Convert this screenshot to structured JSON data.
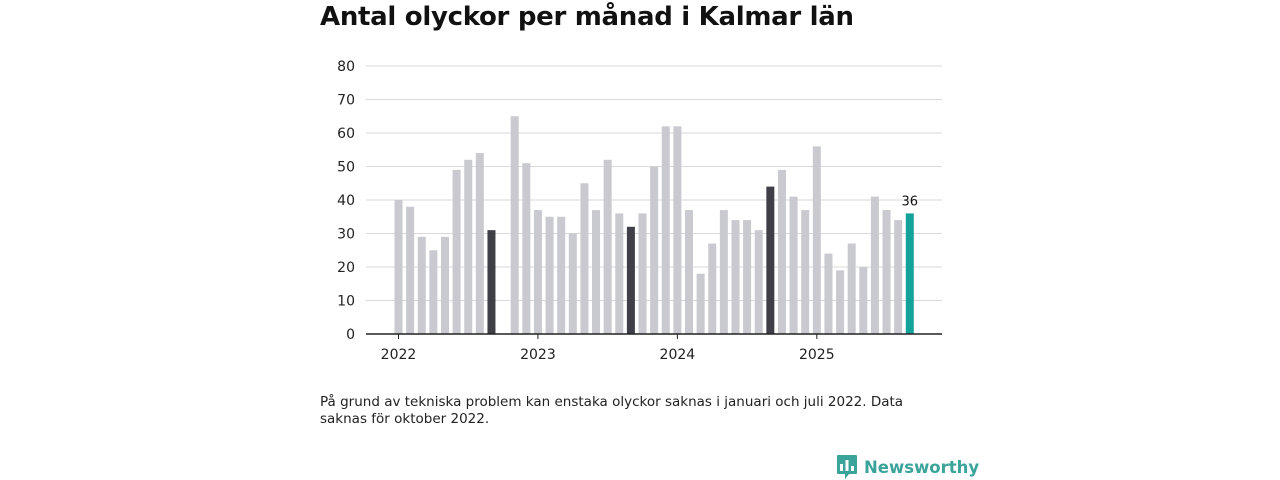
{
  "chart_data": {
    "type": "bar",
    "title": "Antal olyckor per månad i Kalmar län",
    "ylim": [
      0,
      80
    ],
    "yticks": [
      0,
      10,
      20,
      30,
      40,
      50,
      60,
      70,
      80
    ],
    "xticks": [
      "2022",
      "2023",
      "2024",
      "2025"
    ],
    "grid": true,
    "categories": [
      "2022-01",
      "2022-02",
      "2022-03",
      "2022-04",
      "2022-05",
      "2022-06",
      "2022-07",
      "2022-08",
      "2022-09",
      "2022-10",
      "2022-11",
      "2022-12",
      "2023-01",
      "2023-02",
      "2023-03",
      "2023-04",
      "2023-05",
      "2023-06",
      "2023-07",
      "2023-08",
      "2023-09",
      "2023-10",
      "2023-11",
      "2023-12",
      "2024-01",
      "2024-02",
      "2024-03",
      "2024-04",
      "2024-05",
      "2024-06",
      "2024-07",
      "2024-08",
      "2024-09",
      "2024-10",
      "2024-11",
      "2024-12",
      "2025-01",
      "2025-02",
      "2025-03",
      "2025-04",
      "2025-05",
      "2025-06",
      "2025-07",
      "2025-08",
      "2025-09"
    ],
    "values": [
      40,
      38,
      29,
      25,
      29,
      49,
      52,
      54,
      31,
      null,
      65,
      51,
      37,
      35,
      35,
      30,
      45,
      37,
      52,
      36,
      32,
      36,
      50,
      62,
      62,
      37,
      18,
      27,
      37,
      34,
      34,
      31,
      44,
      49,
      41,
      37,
      56,
      24,
      19,
      27,
      20,
      41,
      37,
      34,
      36
    ],
    "highlighted": [
      "2022-09",
      "2023-09",
      "2024-09"
    ],
    "latest": "2025-09",
    "data_labels": [
      {
        "category": "2025-09",
        "text": "36"
      }
    ],
    "colors": {
      "bar": "#c9c9d0",
      "highlight": "#3f3f47",
      "latest": "#13a29a",
      "grid": "#d9d9d9",
      "axis": "#222222"
    }
  },
  "footnote": "På grund av tekniska problem kan enstaka olyckor saknas i januari och juli 2022. Data saknas för oktober 2022.",
  "brand": {
    "name": "Newsworthy",
    "icon": "bar-chart-speech-bubble-icon",
    "color": "#3aa39a"
  }
}
